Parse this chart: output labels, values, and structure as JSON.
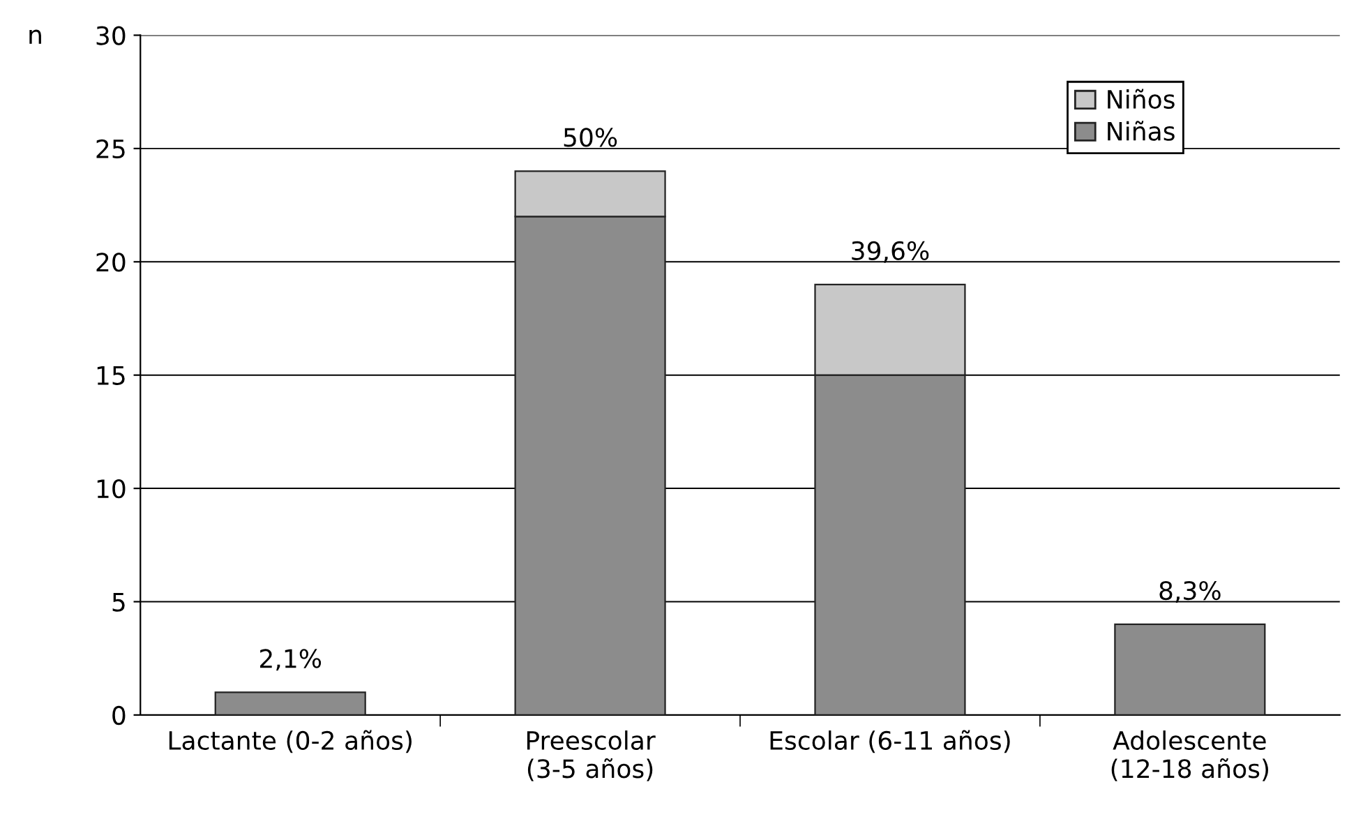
{
  "chart_data": {
    "type": "bar",
    "stacked": true,
    "ylabel": "n",
    "categories": [
      "Lactante (0-2 años)",
      "Preescolar\n(3-5 años)",
      "Escolar (6-11 años)",
      "Adolescente\n(12-18 años)"
    ],
    "series": [
      {
        "name": "Niñas",
        "color": "#8c8c8c",
        "values": [
          1,
          22,
          15,
          4
        ]
      },
      {
        "name": "Niños",
        "color": "#c8c8c8",
        "values": [
          null,
          2,
          4,
          null
        ]
      }
    ],
    "annotations": [
      {
        "text": "2,1%",
        "x": "Lactante (0-2 años)",
        "y": 1
      },
      {
        "text": "50%",
        "x": "Preescolar\n(3-5 años)",
        "y": 24
      },
      {
        "text": "39,6%",
        "x": "Escolar (6-11 años)",
        "y": 19
      },
      {
        "text": "8,3%",
        "x": "Adolescente\n(12-18 años)",
        "y": 4
      }
    ],
    "ylim": [
      0,
      30
    ],
    "yticks": [
      0,
      5,
      10,
      15,
      20,
      25,
      30
    ],
    "grid": "y",
    "legend": "top right"
  }
}
